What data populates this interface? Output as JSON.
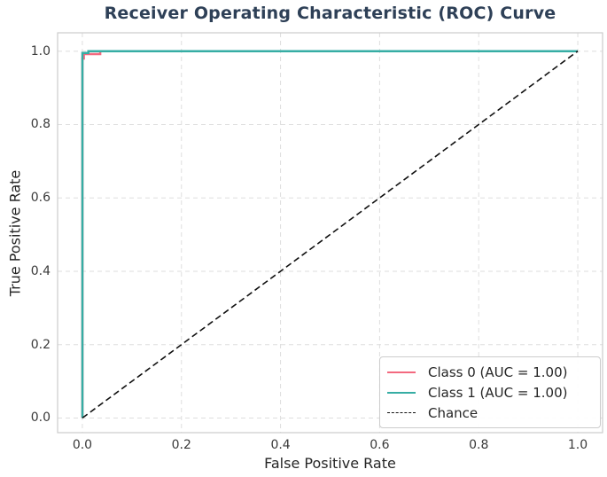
{
  "chart_data": {
    "type": "line",
    "title": "Receiver Operating Characteristic (ROC) Curve",
    "xlabel": "False Positive Rate",
    "ylabel": "True Positive Rate",
    "xlim": [
      -0.05,
      1.05
    ],
    "ylim": [
      -0.04,
      1.05
    ],
    "xticks": [
      0.0,
      0.2,
      0.4,
      0.6,
      0.8,
      1.0
    ],
    "yticks": [
      0.0,
      0.2,
      0.4,
      0.6,
      0.8,
      1.0
    ],
    "xticklabels": [
      "0.0",
      "0.2",
      "0.4",
      "0.6",
      "0.8",
      "1.0"
    ],
    "yticklabels": [
      "0.0",
      "0.2",
      "0.4",
      "0.6",
      "0.8",
      "1.0"
    ],
    "grid": true,
    "grid_style": "dashed",
    "legend_position": "lower right",
    "series": [
      {
        "name": "Class 0 (AUC = 1.00)",
        "color": "#f3697f",
        "style": "solid",
        "width": 2.5,
        "points": [
          [
            0,
            0
          ],
          [
            0,
            0.98
          ],
          [
            0.003,
            0.98
          ],
          [
            0.003,
            0.992
          ],
          [
            0.036,
            0.992
          ],
          [
            0.036,
            1.0
          ],
          [
            1,
            1
          ]
        ]
      },
      {
        "name": "Class 1 (AUC = 1.00)",
        "color": "#36ada4",
        "style": "solid",
        "width": 2.5,
        "points": [
          [
            0,
            0
          ],
          [
            0,
            0.995
          ],
          [
            0.012,
            0.995
          ],
          [
            0.012,
            1.0
          ],
          [
            1,
            1
          ]
        ]
      },
      {
        "name": "Chance",
        "color": "#111111",
        "style": "dashed",
        "width": 1.6,
        "points": [
          [
            0,
            0
          ],
          [
            1,
            1
          ]
        ]
      }
    ]
  },
  "colors": {
    "title": "#2e4057",
    "grid": "#dedede",
    "spine": "#cccccc",
    "tick_label": "#3a3a3a",
    "axis_label": "#262626",
    "background": "#ffffff"
  }
}
